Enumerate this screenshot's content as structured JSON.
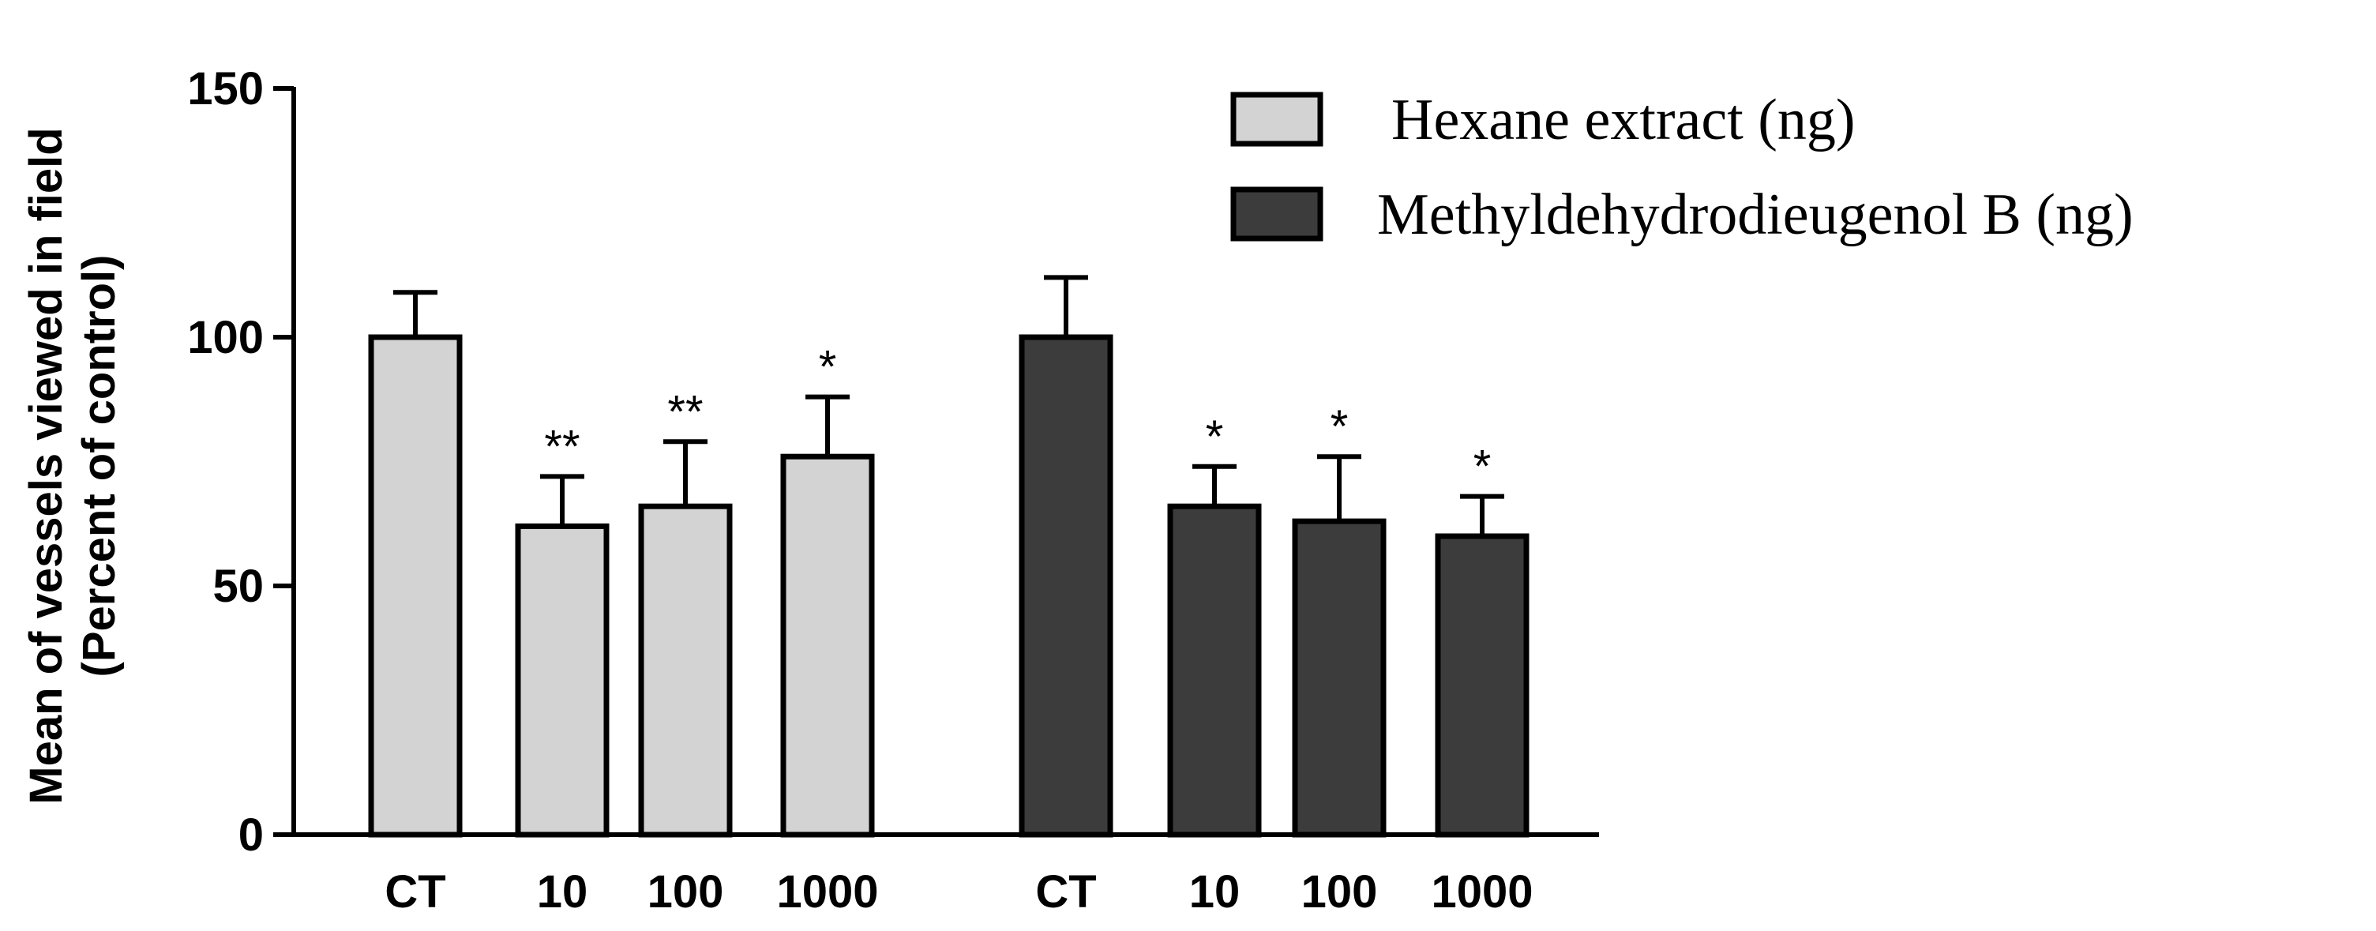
{
  "chart_data": {
    "type": "bar",
    "title": "",
    "xlabel": "",
    "ylabel_lines": [
      "Mean of vessels viewed in field",
      "(Percent of control)"
    ],
    "ylim": [
      0,
      150
    ],
    "yticks": [
      0,
      50,
      100,
      150
    ],
    "grid": false,
    "legend_position": "top-right",
    "colors": {
      "hexane": "#d3d3d3",
      "mdd": "#3c3c3c",
      "stroke": "#000000"
    },
    "series": [
      {
        "name": "Hexane extract (ng)",
        "categories": [
          "CT",
          "10",
          "100",
          "1000"
        ],
        "values": [
          100,
          62,
          66,
          76
        ],
        "errors": [
          9,
          10,
          13,
          12
        ],
        "significance": [
          "",
          "**",
          "**",
          "*"
        ]
      },
      {
        "name": "Methyldehydrodieugenol B (ng)",
        "categories": [
          "CT",
          "10",
          "100",
          "1000"
        ],
        "values": [
          100,
          66,
          63,
          60
        ],
        "errors": [
          12,
          8,
          13,
          8
        ],
        "significance": [
          "",
          "*",
          "*",
          "*"
        ]
      }
    ]
  }
}
